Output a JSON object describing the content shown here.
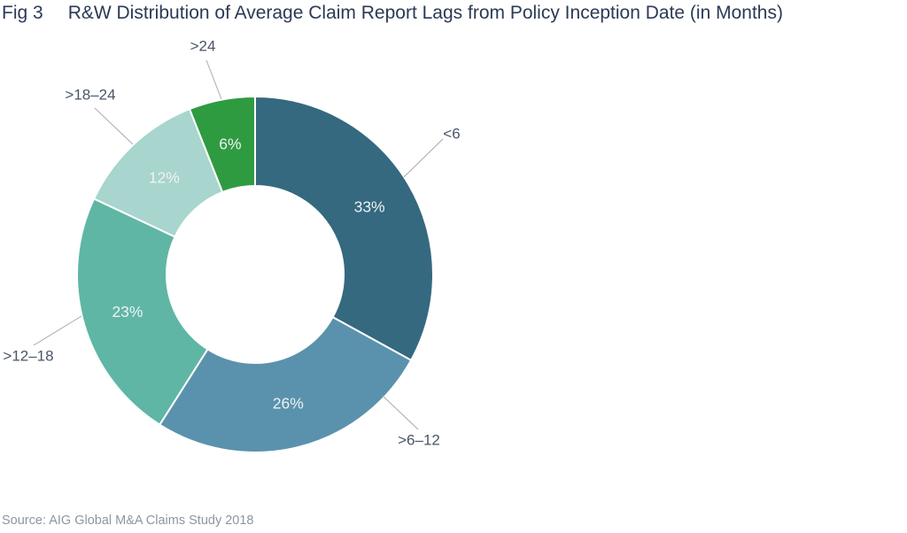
{
  "header": {
    "fig_label": "Fig 3",
    "title": "R&W Distribution of Average Claim Report Lags from Policy Inception Date (in Months)"
  },
  "footer": {
    "source": "Source: AIG Global M&A Claims Study 2018"
  },
  "chart_data": {
    "type": "pie",
    "subtype": "donut",
    "title": "Fig 3  R&W Distribution of Average Claim Report Lags from Policy Inception Date (in Months)",
    "categories": [
      "<6",
      ">6–12",
      ">12–18",
      ">18–24",
      ">24"
    ],
    "values": [
      33,
      26,
      23,
      12,
      6
    ],
    "unit": "%",
    "value_labels": [
      "33%",
      "26%",
      "23%",
      "12%",
      "6%"
    ],
    "colors": [
      "#35697F",
      "#5A92AD",
      "#5FB6A4",
      "#A8D5CD",
      "#2F9B41"
    ],
    "start_angle_deg": 0,
    "direction": "clockwise",
    "inner_radius_ratio": 0.5,
    "legend": "none",
    "label_style": {
      "category_color": "#4A5568",
      "percent_color": "#EDF2F4",
      "connector_color": "#A8AAAD",
      "slice_border_color": "#FFFFFF"
    },
    "source": "Source: AIG Global M&A Claims Study 2018"
  }
}
